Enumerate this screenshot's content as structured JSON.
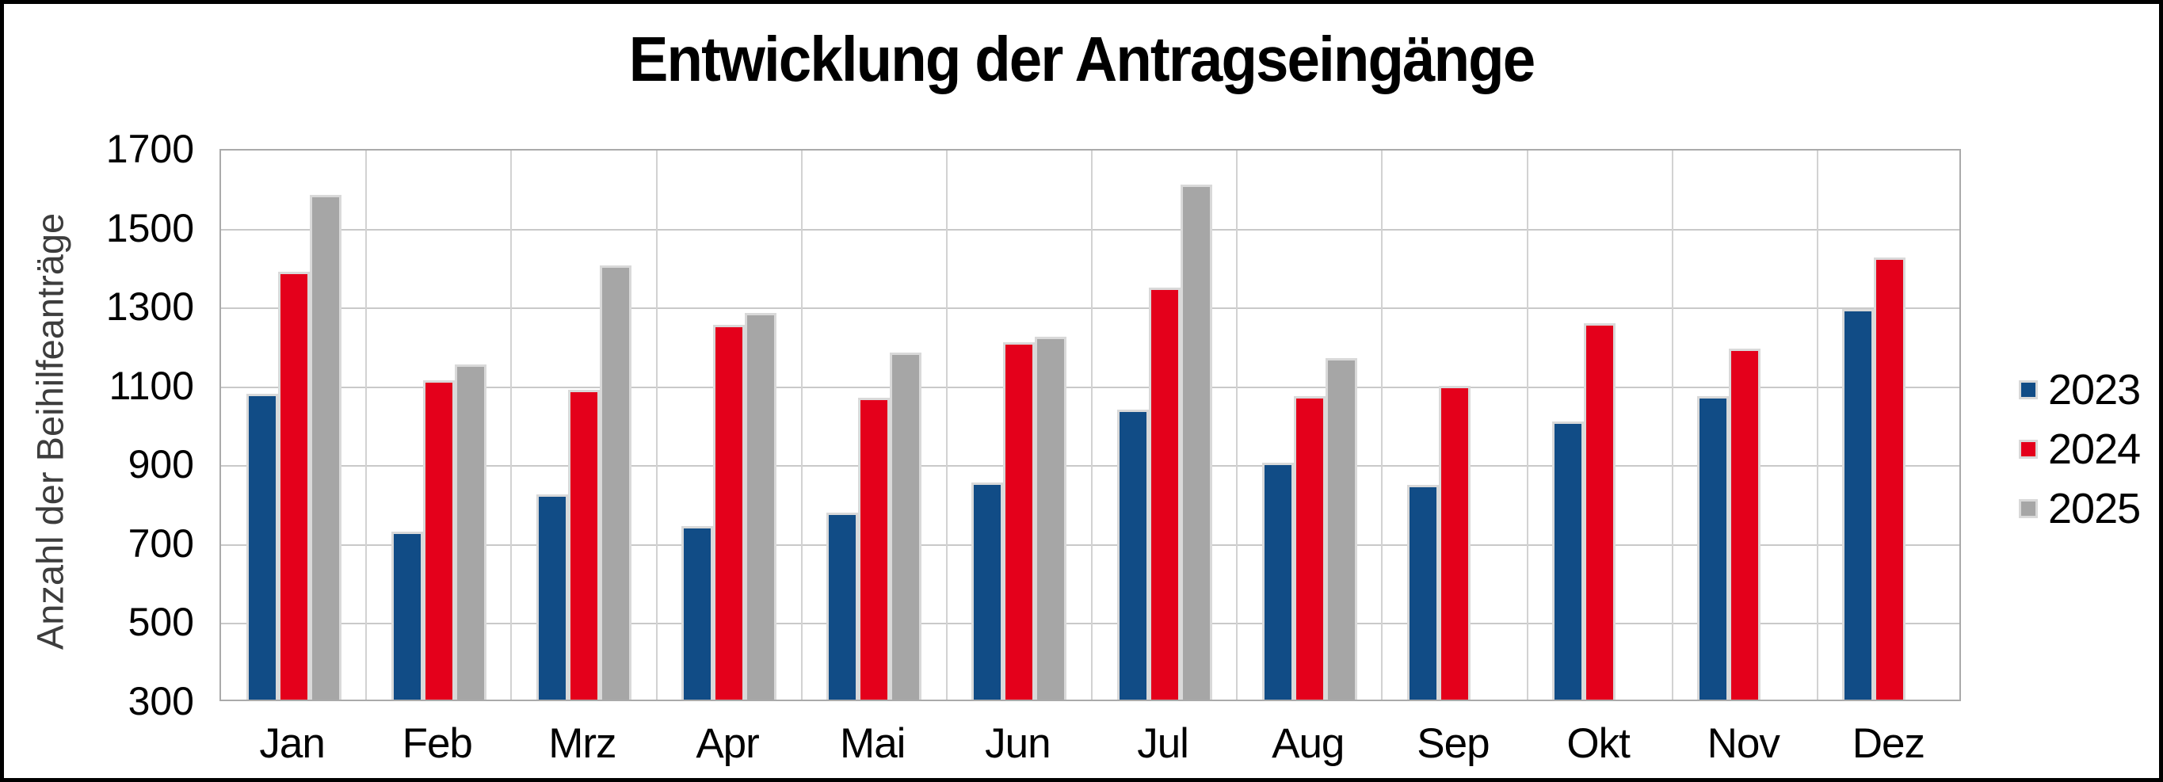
{
  "title": "Entwicklung der Antragseingänge",
  "y_axis": {
    "label": "Anzahl der Beihilfeanträge",
    "ticks": [
      1700,
      1500,
      1300,
      1100,
      900,
      700,
      500,
      300
    ],
    "min": 300,
    "max": 1700,
    "step": 200
  },
  "legend": {
    "position": "right",
    "items": [
      {
        "label": "2023",
        "color": "#114c86"
      },
      {
        "label": "2024",
        "color": "#e4001b"
      },
      {
        "label": "2025",
        "color": "#a6a6a6"
      }
    ]
  },
  "chart_data": {
    "type": "bar",
    "title": "Entwicklung der Antragseingänge",
    "xlabel": "",
    "ylabel": "Anzahl der Beihilfeanträge",
    "ylim": [
      300,
      1700
    ],
    "ytick_step": 200,
    "grid": true,
    "legend_position": "right",
    "categories": [
      "Jan",
      "Feb",
      "Mrz",
      "Apr",
      "Mai",
      "Jun",
      "Jul",
      "Aug",
      "Sep",
      "Okt",
      "Nov",
      "Dez"
    ],
    "series": [
      {
        "name": "2023",
        "color": "#114c86",
        "values": [
          1075,
          725,
          820,
          740,
          775,
          850,
          1035,
          900,
          845,
          1005,
          1070,
          1290
        ]
      },
      {
        "name": "2024",
        "color": "#e4001b",
        "values": [
          1385,
          1110,
          1085,
          1250,
          1065,
          1205,
          1345,
          1070,
          1095,
          1255,
          1190,
          1420
        ]
      },
      {
        "name": "2025",
        "color": "#a6a6a6",
        "values": [
          1580,
          1150,
          1400,
          1280,
          1180,
          1220,
          1605,
          1165,
          null,
          null,
          null,
          null
        ]
      }
    ]
  }
}
